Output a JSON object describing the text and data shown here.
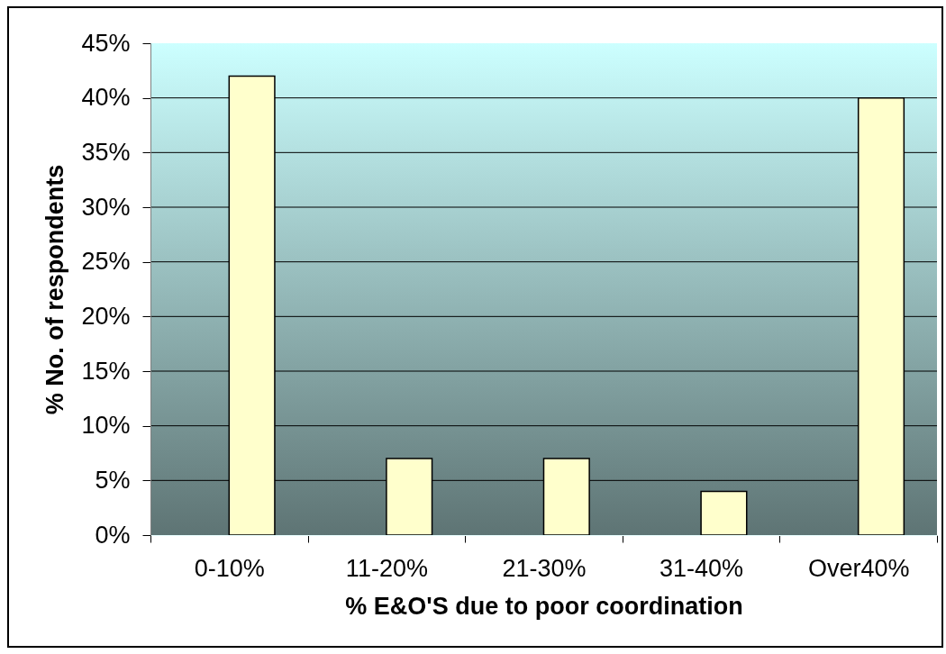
{
  "chart_data": {
    "type": "bar",
    "xlabel": "% E&O'S  due to poor coordination",
    "ylabel": "% No. of respondents",
    "categories": [
      "0-10%",
      "11-20%",
      "21-30%",
      "31-40%",
      "Over40%"
    ],
    "values": [
      42,
      7,
      7,
      4,
      40
    ],
    "color": "#ffffcc",
    "ylim": [
      0,
      45
    ],
    "yticks": [
      {
        "value": 0,
        "label": "0%"
      },
      {
        "value": 5,
        "label": "5%"
      },
      {
        "value": 10,
        "label": "10%"
      },
      {
        "value": 15,
        "label": "15%"
      },
      {
        "value": 20,
        "label": "20%"
      },
      {
        "value": 25,
        "label": "25%"
      },
      {
        "value": 30,
        "label": "30%"
      },
      {
        "value": 35,
        "label": "35%"
      },
      {
        "value": 40,
        "label": "40%"
      },
      {
        "value": 45,
        "label": "45%"
      }
    ],
    "grid": "y"
  }
}
